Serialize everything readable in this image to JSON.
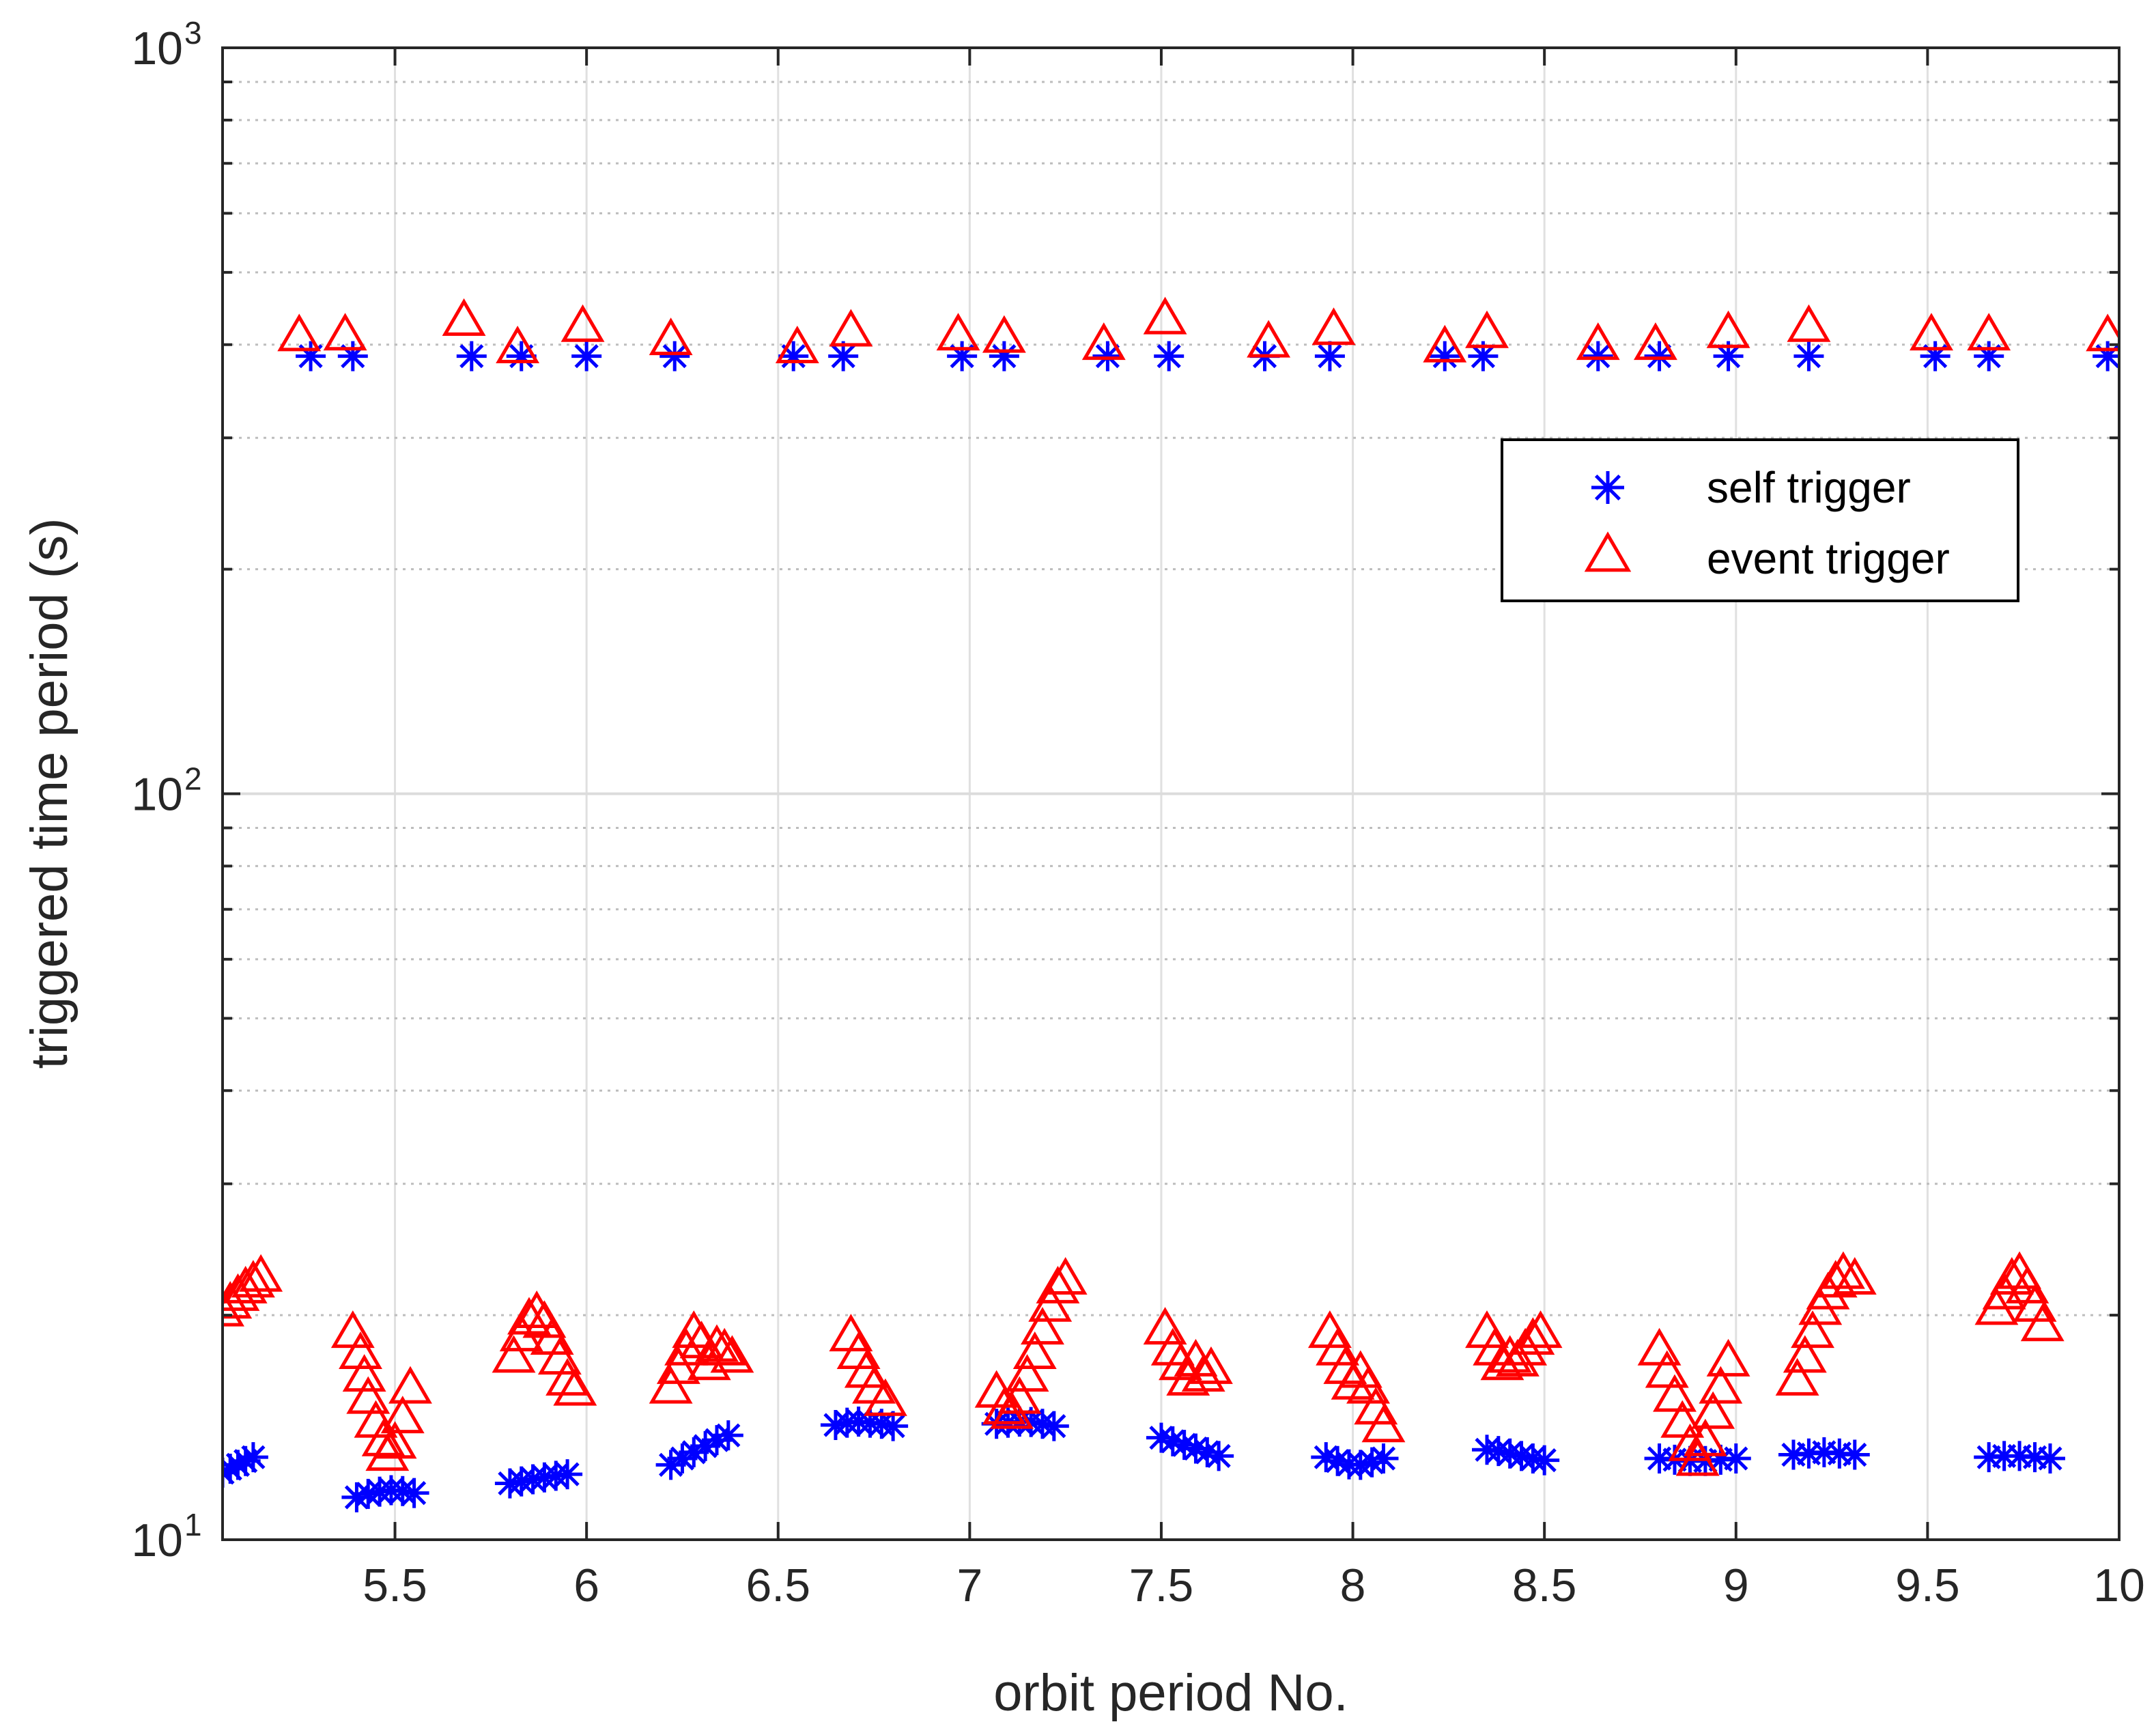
{
  "chart_data": {
    "type": "scatter",
    "title": "",
    "xlabel": "orbit period No.",
    "ylabel": "triggered time period (s)",
    "xlim": [
      5.05,
      10
    ],
    "ylim": [
      10,
      1000
    ],
    "yscale": "log",
    "grid": true,
    "legend_position": "top-right",
    "x_ticks": [
      5.5,
      6,
      6.5,
      7,
      7.5,
      8,
      8.5,
      9,
      9.5,
      10
    ],
    "x_tick_labels": [
      "5.5",
      "6",
      "6.5",
      "7",
      "7.5",
      "8",
      "8.5",
      "9",
      "9.5",
      "10"
    ],
    "y_ticks": [
      {
        "value": 10,
        "base": "10",
        "exp": "1"
      },
      {
        "value": 100,
        "base": "10",
        "exp": "2"
      },
      {
        "value": 1000,
        "base": "10",
        "exp": "3"
      }
    ],
    "series": [
      {
        "name": "self trigger",
        "marker": "asterisk",
        "color": "#0000ff",
        "points": [
          {
            "x": 5.28,
            "y": 386
          },
          {
            "x": 5.39,
            "y": 386
          },
          {
            "x": 5.7,
            "y": 386
          },
          {
            "x": 5.83,
            "y": 386
          },
          {
            "x": 6.0,
            "y": 386
          },
          {
            "x": 6.23,
            "y": 386
          },
          {
            "x": 6.54,
            "y": 386
          },
          {
            "x": 6.67,
            "y": 386
          },
          {
            "x": 6.98,
            "y": 386
          },
          {
            "x": 7.09,
            "y": 386
          },
          {
            "x": 7.36,
            "y": 386
          },
          {
            "x": 7.52,
            "y": 386
          },
          {
            "x": 7.77,
            "y": 386
          },
          {
            "x": 7.94,
            "y": 386
          },
          {
            "x": 8.24,
            "y": 386
          },
          {
            "x": 8.34,
            "y": 386
          },
          {
            "x": 8.64,
            "y": 386
          },
          {
            "x": 8.8,
            "y": 386
          },
          {
            "x": 8.98,
            "y": 386
          },
          {
            "x": 9.19,
            "y": 386
          },
          {
            "x": 9.52,
            "y": 386
          },
          {
            "x": 9.66,
            "y": 386
          },
          {
            "x": 9.97,
            "y": 386
          },
          {
            "x": 5.05,
            "y": 12.3
          },
          {
            "x": 5.07,
            "y": 12.45
          },
          {
            "x": 5.09,
            "y": 12.6
          },
          {
            "x": 5.11,
            "y": 12.75
          },
          {
            "x": 5.13,
            "y": 12.9
          },
          {
            "x": 5.4,
            "y": 11.4
          },
          {
            "x": 5.43,
            "y": 11.52
          },
          {
            "x": 5.46,
            "y": 11.6
          },
          {
            "x": 5.49,
            "y": 11.65
          },
          {
            "x": 5.52,
            "y": 11.62
          },
          {
            "x": 5.55,
            "y": 11.55
          },
          {
            "x": 5.8,
            "y": 11.9
          },
          {
            "x": 5.83,
            "y": 11.97
          },
          {
            "x": 5.86,
            "y": 12.05
          },
          {
            "x": 5.89,
            "y": 12.12
          },
          {
            "x": 5.92,
            "y": 12.18
          },
          {
            "x": 5.95,
            "y": 12.24
          },
          {
            "x": 6.22,
            "y": 12.6
          },
          {
            "x": 6.25,
            "y": 12.85
          },
          {
            "x": 6.28,
            "y": 13.1
          },
          {
            "x": 6.31,
            "y": 13.35
          },
          {
            "x": 6.34,
            "y": 13.6
          },
          {
            "x": 6.37,
            "y": 13.8
          },
          {
            "x": 6.65,
            "y": 14.25
          },
          {
            "x": 6.68,
            "y": 14.35
          },
          {
            "x": 6.71,
            "y": 14.4
          },
          {
            "x": 6.74,
            "y": 14.35
          },
          {
            "x": 6.77,
            "y": 14.3
          },
          {
            "x": 6.8,
            "y": 14.2
          },
          {
            "x": 7.07,
            "y": 14.3
          },
          {
            "x": 7.1,
            "y": 14.35
          },
          {
            "x": 7.13,
            "y": 14.4
          },
          {
            "x": 7.16,
            "y": 14.38
          },
          {
            "x": 7.19,
            "y": 14.3
          },
          {
            "x": 7.22,
            "y": 14.2
          },
          {
            "x": 7.5,
            "y": 13.7
          },
          {
            "x": 7.53,
            "y": 13.55
          },
          {
            "x": 7.56,
            "y": 13.4
          },
          {
            "x": 7.59,
            "y": 13.25
          },
          {
            "x": 7.62,
            "y": 13.1
          },
          {
            "x": 7.65,
            "y": 12.95
          },
          {
            "x": 7.93,
            "y": 12.9
          },
          {
            "x": 7.96,
            "y": 12.75
          },
          {
            "x": 7.99,
            "y": 12.62
          },
          {
            "x": 8.02,
            "y": 12.6
          },
          {
            "x": 8.05,
            "y": 12.7
          },
          {
            "x": 8.08,
            "y": 12.85
          },
          {
            "x": 8.35,
            "y": 13.2
          },
          {
            "x": 8.38,
            "y": 13.15
          },
          {
            "x": 8.41,
            "y": 13.05
          },
          {
            "x": 8.44,
            "y": 12.95
          },
          {
            "x": 8.47,
            "y": 12.85
          },
          {
            "x": 8.5,
            "y": 12.78
          },
          {
            "x": 8.8,
            "y": 12.85
          },
          {
            "x": 8.84,
            "y": 12.8
          },
          {
            "x": 8.88,
            "y": 12.75
          },
          {
            "x": 8.92,
            "y": 12.75
          },
          {
            "x": 8.96,
            "y": 12.8
          },
          {
            "x": 9.0,
            "y": 12.85
          },
          {
            "x": 9.15,
            "y": 13.0
          },
          {
            "x": 9.19,
            "y": 13.05
          },
          {
            "x": 9.23,
            "y": 13.1
          },
          {
            "x": 9.27,
            "y": 13.05
          },
          {
            "x": 9.31,
            "y": 13.0
          },
          {
            "x": 9.66,
            "y": 12.9
          },
          {
            "x": 9.7,
            "y": 12.95
          },
          {
            "x": 9.74,
            "y": 12.95
          },
          {
            "x": 9.78,
            "y": 12.9
          },
          {
            "x": 9.82,
            "y": 12.85
          }
        ]
      },
      {
        "name": "event trigger",
        "marker": "triangle",
        "color": "#ff0000",
        "points": [
          {
            "x": 5.25,
            "y": 412
          },
          {
            "x": 5.37,
            "y": 413
          },
          {
            "x": 5.68,
            "y": 432
          },
          {
            "x": 5.82,
            "y": 397
          },
          {
            "x": 5.99,
            "y": 424
          },
          {
            "x": 6.22,
            "y": 407
          },
          {
            "x": 6.55,
            "y": 397
          },
          {
            "x": 6.69,
            "y": 418
          },
          {
            "x": 6.97,
            "y": 413
          },
          {
            "x": 7.09,
            "y": 410
          },
          {
            "x": 7.35,
            "y": 401
          },
          {
            "x": 7.51,
            "y": 434
          },
          {
            "x": 7.78,
            "y": 404
          },
          {
            "x": 7.95,
            "y": 420
          },
          {
            "x": 8.24,
            "y": 398
          },
          {
            "x": 8.35,
            "y": 416
          },
          {
            "x": 8.64,
            "y": 401
          },
          {
            "x": 8.79,
            "y": 401
          },
          {
            "x": 8.98,
            "y": 416
          },
          {
            "x": 9.19,
            "y": 424
          },
          {
            "x": 9.51,
            "y": 413
          },
          {
            "x": 9.66,
            "y": 413
          },
          {
            "x": 9.97,
            "y": 412
          },
          {
            "x": 5.05,
            "y": 20.3
          },
          {
            "x": 5.07,
            "y": 20.8
          },
          {
            "x": 5.09,
            "y": 21.3
          },
          {
            "x": 5.11,
            "y": 21.8
          },
          {
            "x": 5.13,
            "y": 22.2
          },
          {
            "x": 5.15,
            "y": 22.6
          },
          {
            "x": 5.39,
            "y": 19.0
          },
          {
            "x": 5.41,
            "y": 17.8
          },
          {
            "x": 5.42,
            "y": 16.6
          },
          {
            "x": 5.43,
            "y": 15.5
          },
          {
            "x": 5.45,
            "y": 14.4
          },
          {
            "x": 5.47,
            "y": 13.6
          },
          {
            "x": 5.48,
            "y": 13.0
          },
          {
            "x": 5.5,
            "y": 13.5
          },
          {
            "x": 5.52,
            "y": 14.6
          },
          {
            "x": 5.54,
            "y": 16.0
          },
          {
            "x": 5.81,
            "y": 17.6
          },
          {
            "x": 5.83,
            "y": 18.8
          },
          {
            "x": 5.85,
            "y": 19.8
          },
          {
            "x": 5.87,
            "y": 20.2
          },
          {
            "x": 5.89,
            "y": 19.6
          },
          {
            "x": 5.91,
            "y": 18.6
          },
          {
            "x": 5.93,
            "y": 17.5
          },
          {
            "x": 5.95,
            "y": 16.4
          },
          {
            "x": 5.97,
            "y": 15.9
          },
          {
            "x": 6.22,
            "y": 16.0
          },
          {
            "x": 6.24,
            "y": 17.0
          },
          {
            "x": 6.26,
            "y": 18.0
          },
          {
            "x": 6.28,
            "y": 19.0
          },
          {
            "x": 6.3,
            "y": 18.4
          },
          {
            "x": 6.32,
            "y": 17.2
          },
          {
            "x": 6.34,
            "y": 18.2
          },
          {
            "x": 6.36,
            "y": 18.0
          },
          {
            "x": 6.38,
            "y": 17.6
          },
          {
            "x": 6.69,
            "y": 18.8
          },
          {
            "x": 6.71,
            "y": 17.8
          },
          {
            "x": 6.73,
            "y": 16.8
          },
          {
            "x": 6.75,
            "y": 16.0
          },
          {
            "x": 6.78,
            "y": 15.4
          },
          {
            "x": 7.07,
            "y": 15.8
          },
          {
            "x": 7.09,
            "y": 15.0
          },
          {
            "x": 7.11,
            "y": 14.8
          },
          {
            "x": 7.13,
            "y": 15.5
          },
          {
            "x": 7.15,
            "y": 16.6
          },
          {
            "x": 7.17,
            "y": 17.8
          },
          {
            "x": 7.19,
            "y": 19.2
          },
          {
            "x": 7.21,
            "y": 20.6
          },
          {
            "x": 7.23,
            "y": 21.8
          },
          {
            "x": 7.25,
            "y": 22.4
          },
          {
            "x": 7.51,
            "y": 19.2
          },
          {
            "x": 7.53,
            "y": 18.0
          },
          {
            "x": 7.55,
            "y": 17.2
          },
          {
            "x": 7.57,
            "y": 16.4
          },
          {
            "x": 7.59,
            "y": 17.4
          },
          {
            "x": 7.61,
            "y": 16.6
          },
          {
            "x": 7.63,
            "y": 17.0
          },
          {
            "x": 7.94,
            "y": 19.0
          },
          {
            "x": 7.96,
            "y": 18.0
          },
          {
            "x": 7.98,
            "y": 17.0
          },
          {
            "x": 8.0,
            "y": 16.2
          },
          {
            "x": 8.02,
            "y": 16.8
          },
          {
            "x": 8.04,
            "y": 16.0
          },
          {
            "x": 8.06,
            "y": 15.0
          },
          {
            "x": 8.08,
            "y": 14.2
          },
          {
            "x": 8.35,
            "y": 19.0
          },
          {
            "x": 8.37,
            "y": 18.0
          },
          {
            "x": 8.39,
            "y": 17.2
          },
          {
            "x": 8.41,
            "y": 17.6
          },
          {
            "x": 8.43,
            "y": 17.4
          },
          {
            "x": 8.45,
            "y": 18.0
          },
          {
            "x": 8.47,
            "y": 18.6
          },
          {
            "x": 8.49,
            "y": 19.0
          },
          {
            "x": 8.8,
            "y": 18.0
          },
          {
            "x": 8.82,
            "y": 16.8
          },
          {
            "x": 8.84,
            "y": 15.6
          },
          {
            "x": 8.86,
            "y": 14.4
          },
          {
            "x": 8.88,
            "y": 13.4
          },
          {
            "x": 8.9,
            "y": 12.8
          },
          {
            "x": 8.92,
            "y": 13.6
          },
          {
            "x": 8.94,
            "y": 14.8
          },
          {
            "x": 8.96,
            "y": 16.0
          },
          {
            "x": 8.98,
            "y": 17.4
          },
          {
            "x": 9.16,
            "y": 16.4
          },
          {
            "x": 9.18,
            "y": 17.6
          },
          {
            "x": 9.2,
            "y": 19.0
          },
          {
            "x": 9.22,
            "y": 20.4
          },
          {
            "x": 9.24,
            "y": 21.4
          },
          {
            "x": 9.26,
            "y": 22.2
          },
          {
            "x": 9.28,
            "y": 22.8
          },
          {
            "x": 9.31,
            "y": 22.4
          },
          {
            "x": 9.68,
            "y": 20.4
          },
          {
            "x": 9.7,
            "y": 21.4
          },
          {
            "x": 9.72,
            "y": 22.4
          },
          {
            "x": 9.74,
            "y": 22.8
          },
          {
            "x": 9.76,
            "y": 21.8
          },
          {
            "x": 9.78,
            "y": 20.6
          },
          {
            "x": 9.8,
            "y": 19.4
          }
        ]
      }
    ]
  }
}
